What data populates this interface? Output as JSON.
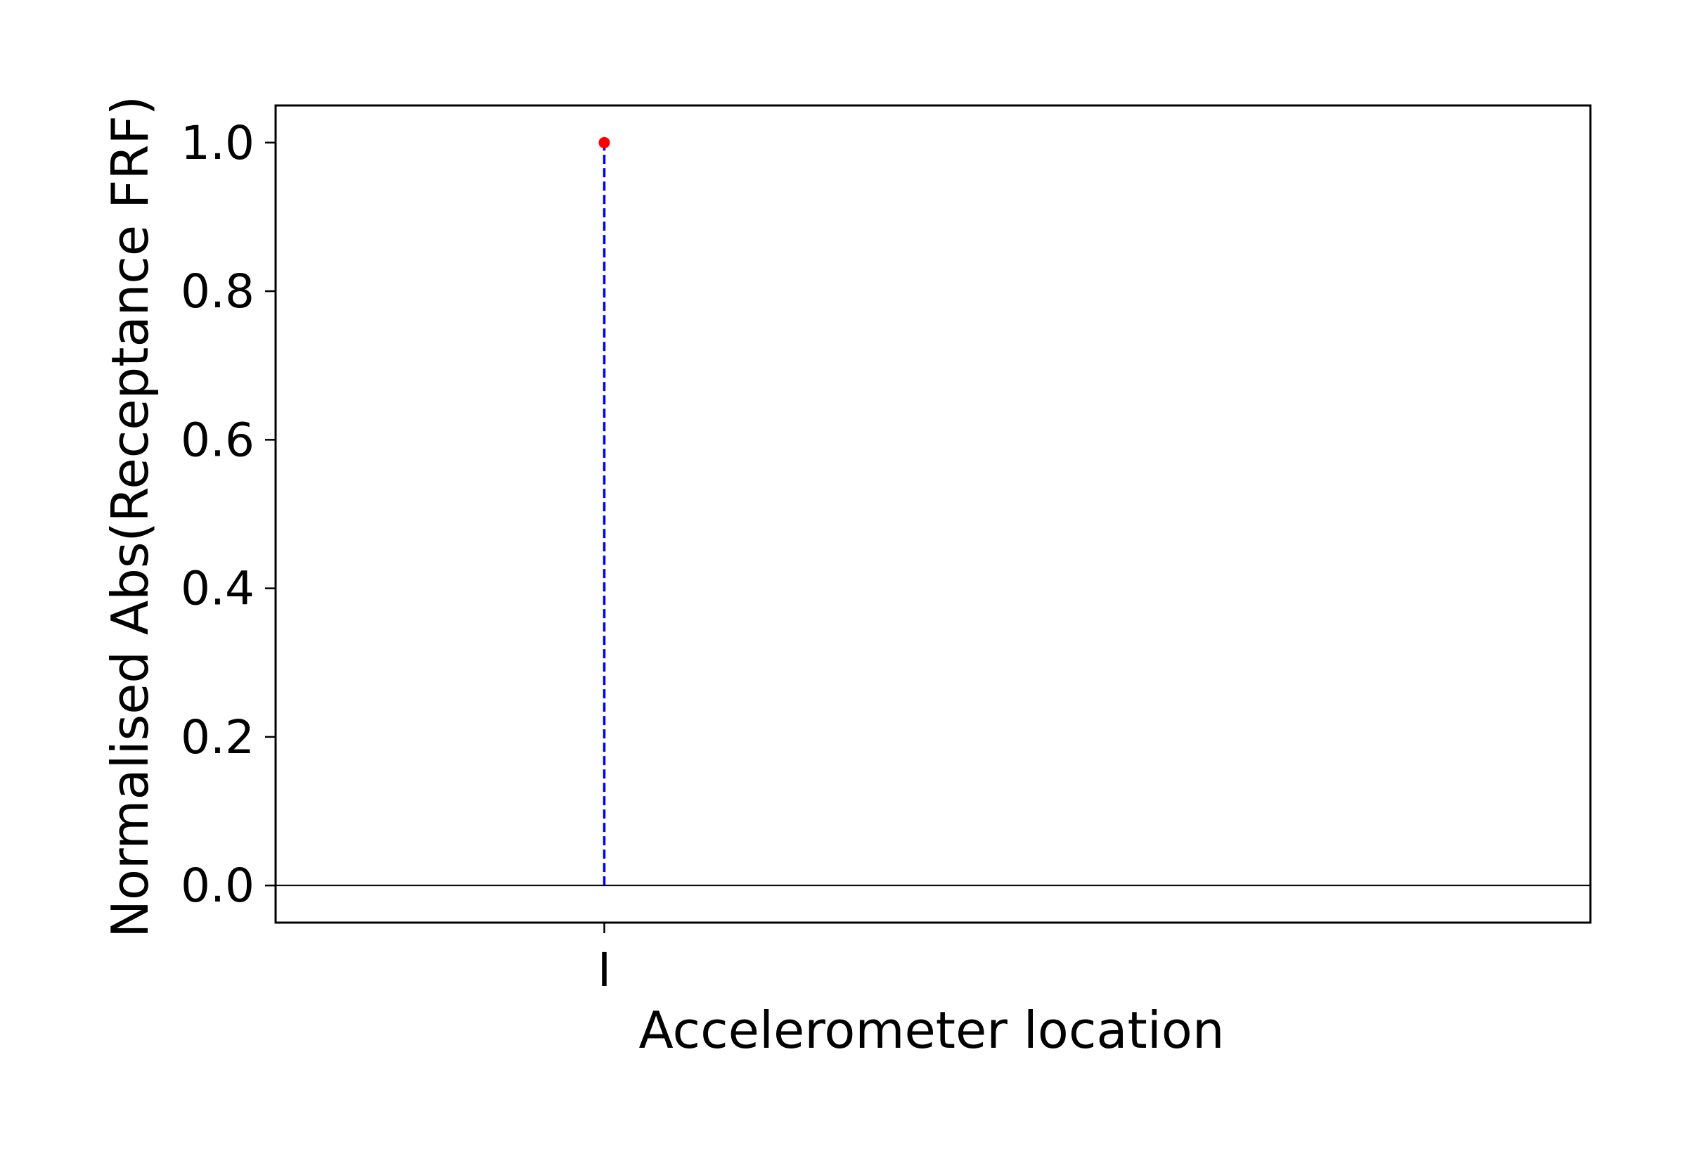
{
  "chart_data": {
    "type": "stem",
    "title": "",
    "xlabel": "Accelerometer location",
    "ylabel": "Normalised Abs(Receptance FRF)",
    "categories": [
      "I"
    ],
    "values": [
      1.0
    ],
    "xlim": [
      -0.5,
      1.5
    ],
    "ylim": [
      -0.05,
      1.05
    ],
    "yticks": [
      0.0,
      0.2,
      0.4,
      0.6,
      0.8,
      1.0
    ],
    "ytick_labels": [
      "0.0",
      "0.2",
      "0.4",
      "0.6",
      "0.8",
      "1.0"
    ],
    "baseline": 0.0,
    "grid": false,
    "colors": {
      "stem_line": "#0000ff",
      "marker": "#ff0000",
      "baseline": "#000000",
      "frame": "#000000"
    }
  }
}
